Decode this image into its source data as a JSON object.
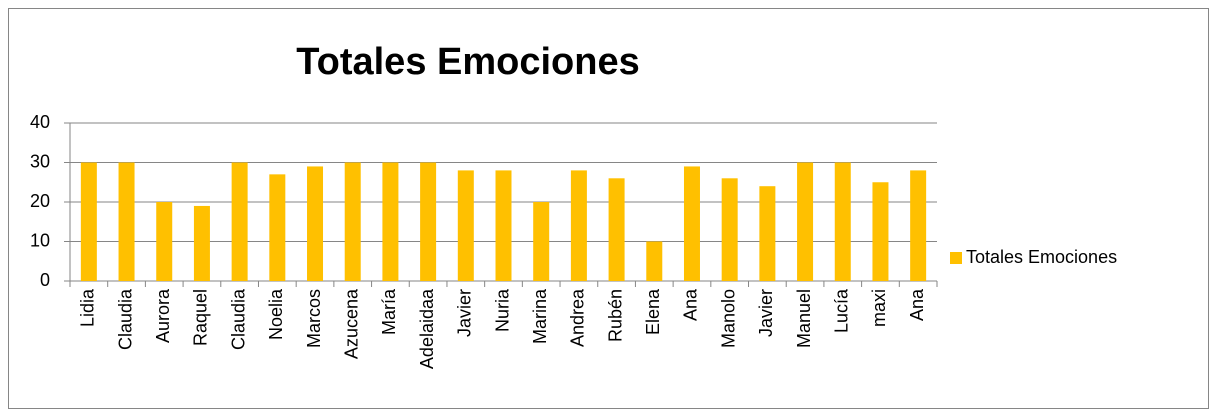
{
  "chart_data": {
    "type": "bar",
    "title": "Totales Emociones",
    "categories": [
      "Lidia",
      "Claudia",
      "Aurora",
      "Raquel",
      "Claudia",
      "Noelia",
      "Marcos",
      "Azucena",
      "María",
      "Adelaidaa",
      "Javier",
      "Nuria",
      "Marina",
      "Andrea",
      "Rubén",
      "Elena",
      "Ana",
      "Manolo",
      "Javier",
      "Manuel",
      "Lucía",
      "maxi",
      "Ana"
    ],
    "series": [
      {
        "name": "Totales Emociones",
        "color": "#ffc000",
        "values": [
          30,
          30,
          20,
          19,
          30,
          27,
          29,
          30,
          30,
          30,
          28,
          28,
          20,
          28,
          26,
          10,
          29,
          26,
          24,
          30,
          30,
          25,
          28
        ]
      }
    ],
    "ylim": [
      0,
      40
    ],
    "yticks": [
      0,
      10,
      20,
      30,
      40
    ],
    "grid": true,
    "legend": "right"
  }
}
